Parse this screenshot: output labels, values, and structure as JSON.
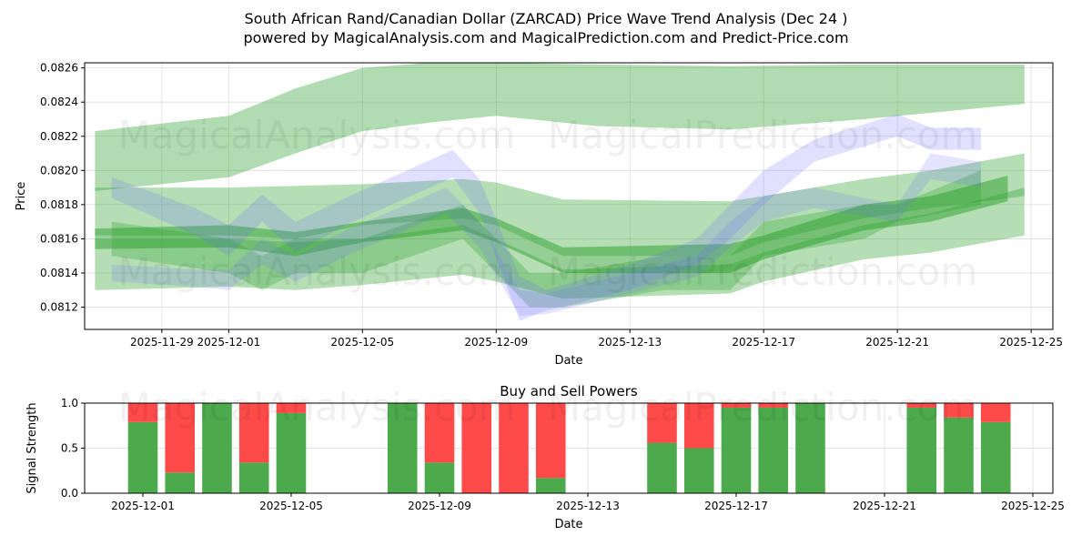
{
  "title_line1": "South African Rand/Canadian Dollar (ZARCAD) Price Wave Trend Analysis (Dec 24 )",
  "title_line2": "powered by MagicalAnalysis.com and MagicalPrediction.com and Predict-Price.com",
  "watermarks": [
    "MagicalAnalysis.com",
    "MagicalPrediction.com"
  ],
  "colors": {
    "band_green": "#2ca02c",
    "band_blue": "#6a6aff",
    "buy": "#4caa4c",
    "sell": "#ff4a4a"
  },
  "chart_data": [
    {
      "type": "area",
      "title": "",
      "xlabel": "Date",
      "ylabel": "Price",
      "x_unit": "days since 2025-11-29",
      "xlim": [
        -2.31,
        26.65
      ],
      "ylim": [
        0.08107,
        0.08263
      ],
      "grid": true,
      "xticks": [
        {
          "v": 0,
          "label": "2025-11-29"
        },
        {
          "v": 2,
          "label": "2025-12-01"
        },
        {
          "v": 6,
          "label": "2025-12-05"
        },
        {
          "v": 10,
          "label": "2025-12-09"
        },
        {
          "v": 14,
          "label": "2025-12-13"
        },
        {
          "v": 18,
          "label": "2025-12-17"
        },
        {
          "v": 22,
          "label": "2025-12-21"
        },
        {
          "v": 26,
          "label": "2025-12-25"
        }
      ],
      "yticks": [
        {
          "v": 0.0812,
          "label": "0.0812"
        },
        {
          "v": 0.0814,
          "label": "0.0814"
        },
        {
          "v": 0.0816,
          "label": "0.0816"
        },
        {
          "v": 0.0818,
          "label": "0.0818"
        },
        {
          "v": 0.082,
          "label": "0.0820"
        },
        {
          "v": 0.0822,
          "label": "0.0822"
        },
        {
          "v": 0.0824,
          "label": "0.0824"
        },
        {
          "v": 0.0826,
          "label": "0.0826"
        }
      ],
      "bands": [
        {
          "name": "upper-wave",
          "color": "green",
          "opacity": 0.37,
          "x": [
            -2,
            2,
            4,
            6,
            8,
            10,
            13,
            17,
            21,
            25.8
          ],
          "upper": [
            0.08223,
            0.08232,
            0.08248,
            0.0826,
            0.08263,
            0.08263,
            0.08262,
            0.08261,
            0.08262,
            0.08262
          ],
          "lower": [
            0.08188,
            0.08196,
            0.0821,
            0.08223,
            0.08228,
            0.08232,
            0.08226,
            0.08224,
            0.0823,
            0.08239
          ]
        },
        {
          "name": "wave-1",
          "color": "green",
          "opacity": 0.35,
          "x": [
            -2,
            2,
            4,
            6,
            9,
            10,
            12,
            17,
            18,
            21,
            23,
            25.8
          ],
          "upper": [
            0.0819,
            0.0819,
            0.08191,
            0.08192,
            0.08195,
            0.08193,
            0.08183,
            0.08182,
            0.08185,
            0.08195,
            0.082,
            0.0821
          ],
          "lower": [
            0.08162,
            0.08162,
            0.0816,
            0.08168,
            0.08172,
            0.08168,
            0.0815,
            0.0815,
            0.08158,
            0.08172,
            0.08178,
            0.08185
          ]
        },
        {
          "name": "wave-2",
          "color": "green",
          "opacity": 0.5,
          "x": [
            -2,
            2,
            4,
            6,
            9,
            10,
            12,
            17,
            18,
            21,
            23,
            25.3
          ],
          "upper": [
            0.08166,
            0.08168,
            0.08164,
            0.0817,
            0.08178,
            0.08172,
            0.08155,
            0.08157,
            0.08162,
            0.0818,
            0.08185,
            0.08197
          ],
          "lower": [
            0.08154,
            0.08155,
            0.0815,
            0.08158,
            0.08165,
            0.08158,
            0.0814,
            0.0814,
            0.08148,
            0.08165,
            0.0817,
            0.08182
          ]
        },
        {
          "name": "wave-3",
          "color": "green",
          "opacity": 0.35,
          "x": [
            -2,
            2,
            4,
            6,
            9,
            10,
            12,
            17,
            18,
            21,
            23,
            25.8
          ],
          "upper": [
            0.0816,
            0.0816,
            0.08158,
            0.0816,
            0.08168,
            0.0816,
            0.08142,
            0.08145,
            0.08152,
            0.08168,
            0.08175,
            0.0819
          ],
          "lower": [
            0.0813,
            0.08132,
            0.0813,
            0.08133,
            0.08139,
            0.08135,
            0.08125,
            0.08128,
            0.08135,
            0.08148,
            0.08152,
            0.08162
          ]
        },
        {
          "name": "wave-4",
          "color": "green",
          "opacity": 0.3,
          "x": [
            -1.5,
            2,
            3,
            4,
            6,
            9,
            10,
            11,
            12,
            15,
            17,
            18,
            21,
            22,
            24.5
          ],
          "upper": [
            0.0817,
            0.0816,
            0.0815,
            0.0816,
            0.0816,
            0.0818,
            0.0816,
            0.0814,
            0.0814,
            0.0815,
            0.0815,
            0.0817,
            0.0818,
            0.0818,
            0.082
          ],
          "lower": [
            0.0815,
            0.0814,
            0.0813,
            0.0814,
            0.0814,
            0.0816,
            0.0814,
            0.0812,
            0.0812,
            0.0813,
            0.0813,
            0.0815,
            0.0816,
            0.0817,
            0.0818
          ]
        },
        {
          "name": "price-wave-1",
          "color": "blue",
          "opacity": 0.2,
          "x": [
            -1.5,
            1,
            2,
            3,
            4,
            5.5,
            8.7,
            9.5,
            10.7,
            11.5,
            14,
            16,
            17,
            18,
            19.5,
            22,
            23,
            24.5
          ],
          "upper": [
            0.08196,
            0.08178,
            0.08168,
            0.08186,
            0.0817,
            0.08184,
            0.08212,
            0.08195,
            0.08138,
            0.0813,
            0.08145,
            0.0816,
            0.0818,
            0.082,
            0.08218,
            0.08233,
            0.08225,
            0.08225
          ],
          "lower": [
            0.08184,
            0.08162,
            0.0815,
            0.0817,
            0.08152,
            0.08168,
            0.08196,
            0.08175,
            0.08112,
            0.08118,
            0.0813,
            0.08145,
            0.0816,
            0.0818,
            0.08205,
            0.0822,
            0.08212,
            0.08212
          ]
        },
        {
          "name": "price-wave-2",
          "color": "blue",
          "opacity": 0.18,
          "x": [
            -1.5,
            1,
            2,
            3,
            4,
            5.5,
            8.5,
            9.5,
            10.7,
            11.5,
            14,
            16,
            17,
            18,
            19.5,
            22,
            23,
            24.5
          ],
          "upper": [
            0.08145,
            0.08142,
            0.08142,
            0.0816,
            0.0815,
            0.08165,
            0.0819,
            0.0817,
            0.0813,
            0.08128,
            0.0814,
            0.0815,
            0.0817,
            0.08185,
            0.0819,
            0.0818,
            0.0821,
            0.08205
          ],
          "lower": [
            0.08135,
            0.08132,
            0.0813,
            0.08145,
            0.08135,
            0.0815,
            0.08175,
            0.08155,
            0.08115,
            0.08116,
            0.08128,
            0.08138,
            0.08155,
            0.0817,
            0.08178,
            0.0817,
            0.08195,
            0.0819
          ]
        }
      ]
    },
    {
      "type": "bar",
      "title": "Buy and Sell Powers",
      "xlabel": "Date",
      "ylabel": "Signal Strength",
      "x_unit": "days since 2025-11-29",
      "xlim": [
        0.43,
        26.54
      ],
      "ylim": [
        0,
        1
      ],
      "xticks": [
        {
          "v": 2,
          "label": "2025-12-01"
        },
        {
          "v": 6,
          "label": "2025-12-05"
        },
        {
          "v": 10,
          "label": "2025-12-09"
        },
        {
          "v": 14,
          "label": "2025-12-13"
        },
        {
          "v": 18,
          "label": "2025-12-17"
        },
        {
          "v": 22,
          "label": "2025-12-21"
        },
        {
          "v": 26,
          "label": "2025-12-25"
        }
      ],
      "yticks": [
        {
          "v": 0,
          "label": "0.0"
        },
        {
          "v": 0.5,
          "label": "0.5"
        },
        {
          "v": 1,
          "label": "1.0"
        }
      ],
      "categories": [
        "2025-12-01",
        "2025-12-02",
        "2025-12-03",
        "2025-12-04",
        "2025-12-05",
        "2025-12-08",
        "2025-12-09",
        "2025-12-10",
        "2025-12-11",
        "2025-12-12",
        "2025-12-15",
        "2025-12-16",
        "2025-12-17",
        "2025-12-18",
        "2025-12-19",
        "2025-12-22",
        "2025-12-23",
        "2025-12-24"
      ],
      "x": [
        2,
        3,
        4,
        5,
        6,
        9,
        10,
        11,
        12,
        13,
        16,
        17,
        18,
        19,
        20,
        23,
        24,
        25
      ],
      "series": [
        {
          "name": "Buy",
          "values": [
            0.79,
            0.23,
            1.0,
            0.34,
            0.89,
            1.0,
            0.34,
            0.0,
            0.0,
            0.17,
            0.56,
            0.5,
            0.95,
            0.95,
            1.0,
            0.95,
            0.84,
            0.79
          ]
        },
        {
          "name": "Sell",
          "values": [
            0.21,
            0.77,
            0.0,
            0.66,
            0.11,
            0.0,
            0.66,
            1.0,
            1.0,
            0.83,
            0.44,
            0.5,
            0.05,
            0.05,
            0.0,
            0.05,
            0.16,
            0.21
          ]
        }
      ]
    }
  ]
}
